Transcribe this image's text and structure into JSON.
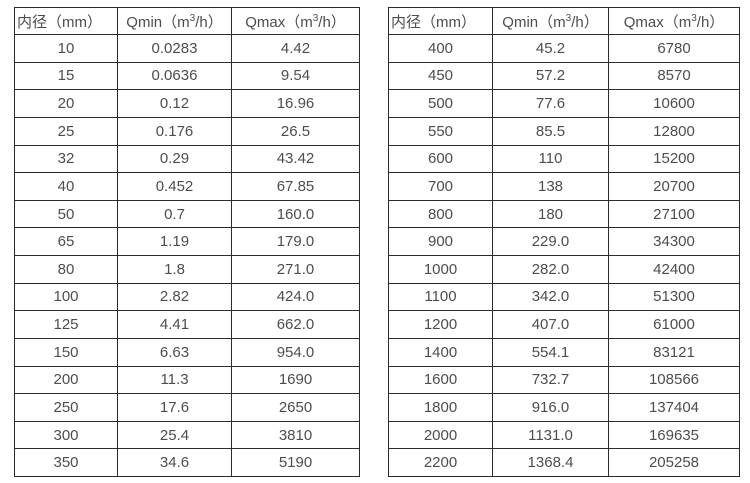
{
  "tables": {
    "left": {
      "headers": [
        "内径（mm）",
        "Qmin（m³/h）",
        "Qmax（m³/h）"
      ],
      "rows": [
        [
          "10",
          "0.0283",
          "4.42"
        ],
        [
          "15",
          "0.0636",
          "9.54"
        ],
        [
          "20",
          "0.12",
          "16.96"
        ],
        [
          "25",
          "0.176",
          "26.5"
        ],
        [
          "32",
          "0.29",
          "43.42"
        ],
        [
          "40",
          "0.452",
          "67.85"
        ],
        [
          "50",
          "0.7",
          "160.0"
        ],
        [
          "65",
          "1.19",
          "179.0"
        ],
        [
          "80",
          "1.8",
          "271.0"
        ],
        [
          "100",
          "2.82",
          "424.0"
        ],
        [
          "125",
          "4.41",
          "662.0"
        ],
        [
          "150",
          "6.63",
          "954.0"
        ],
        [
          "200",
          "11.3",
          "1690"
        ],
        [
          "250",
          "17.6",
          "2650"
        ],
        [
          "300",
          "25.4",
          "3810"
        ],
        [
          "350",
          "34.6",
          "5190"
        ]
      ]
    },
    "right": {
      "headers": [
        "内径（mm）",
        "Qmin（m³/h）",
        "Qmax（m³/h）"
      ],
      "rows": [
        [
          "400",
          "45.2",
          "6780"
        ],
        [
          "450",
          "57.2",
          "8570"
        ],
        [
          "500",
          "77.6",
          "10600"
        ],
        [
          "550",
          "85.5",
          "12800"
        ],
        [
          "600",
          "110",
          "15200"
        ],
        [
          "700",
          "138",
          "20700"
        ],
        [
          "800",
          "180",
          "27100"
        ],
        [
          "900",
          "229.0",
          "34300"
        ],
        [
          "1000",
          "282.0",
          "42400"
        ],
        [
          "1100",
          "342.0",
          "51300"
        ],
        [
          "1200",
          "407.0",
          "61000"
        ],
        [
          "1400",
          "554.1",
          "83121"
        ],
        [
          "1600",
          "732.7",
          "108566"
        ],
        [
          "1800",
          "916.0",
          "137404"
        ],
        [
          "2000",
          "1131.0",
          "169635"
        ],
        [
          "2200",
          "1368.4",
          "205258"
        ]
      ]
    }
  },
  "colors": {
    "text": "#4d4d4d",
    "border": "#2b2b2b",
    "background": "#ffffff"
  }
}
